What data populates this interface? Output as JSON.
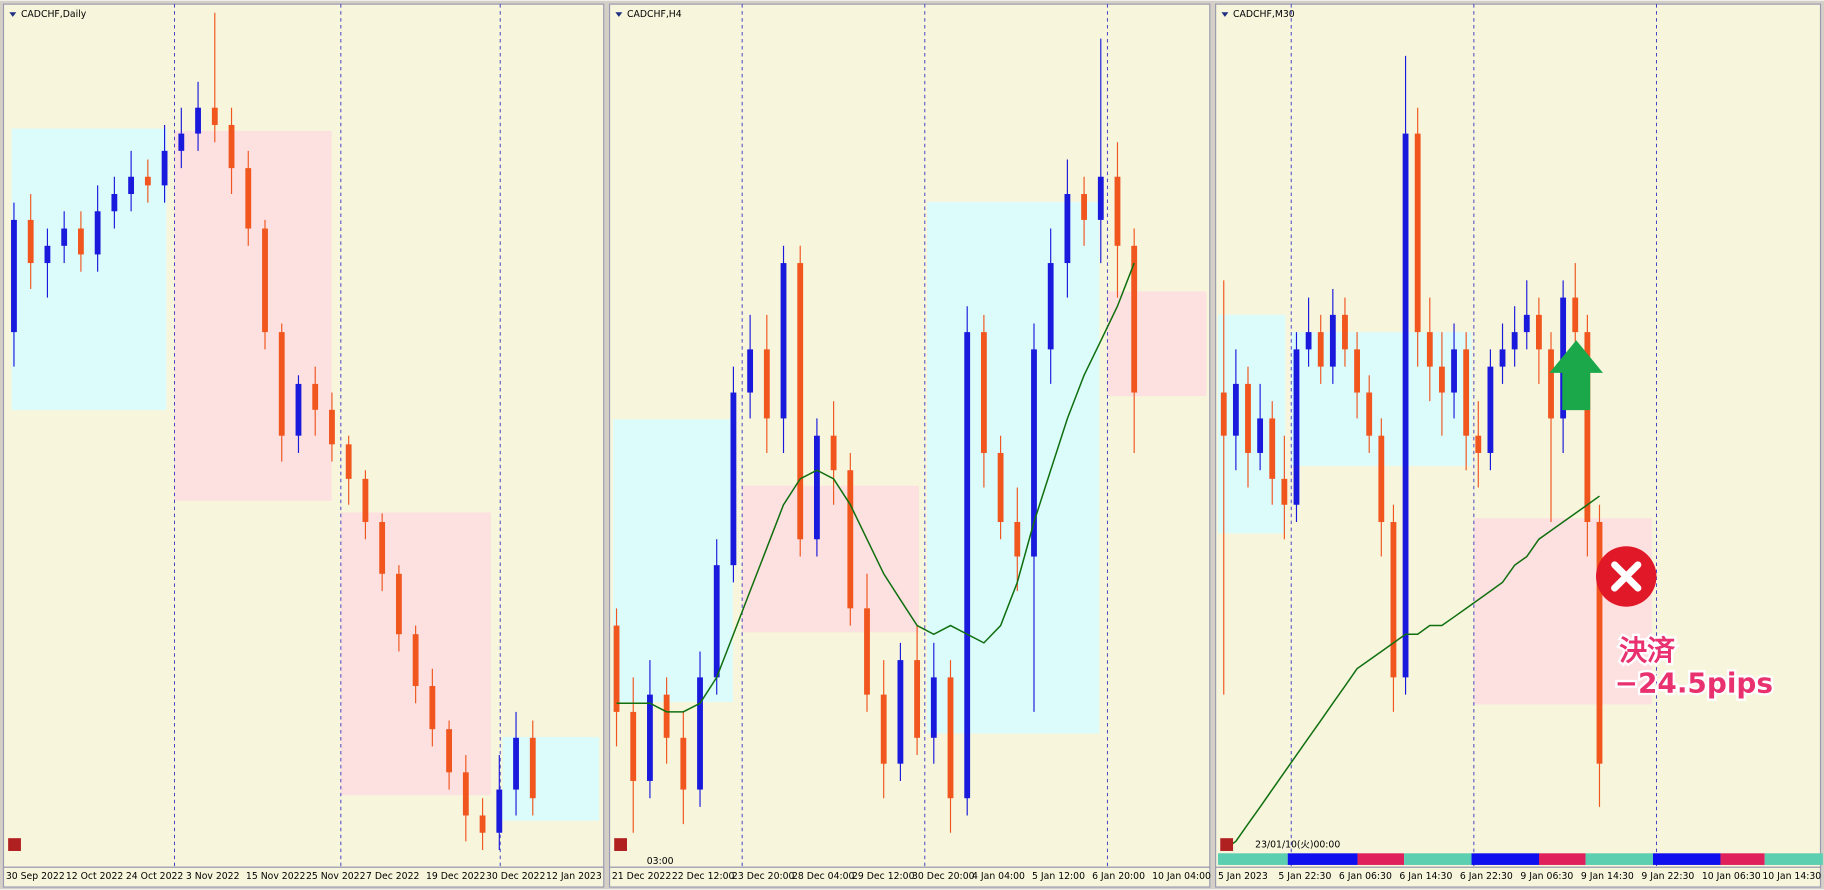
{
  "chart_data": [
    {
      "type": "candlestick",
      "title": "CADCHF,Daily",
      "ylim": [
        0,
        100
      ],
      "up_color": "#1a1adc",
      "down_color": "#f0561e",
      "open": [
        62,
        75,
        70,
        72,
        74,
        71,
        76,
        78,
        80,
        79,
        83,
        85,
        88,
        86,
        81,
        74,
        62,
        50,
        56,
        53,
        49,
        45,
        40,
        34,
        27,
        21,
        16,
        11,
        6,
        4,
        9,
        15
      ],
      "high": [
        77,
        78,
        74,
        76,
        76,
        79,
        80,
        83,
        82,
        86,
        88,
        91,
        99,
        88,
        83,
        75,
        63,
        57,
        58,
        55,
        50,
        46,
        41,
        35,
        28,
        23,
        17,
        13,
        8,
        13,
        18,
        17
      ],
      "low": [
        58,
        67,
        66,
        70,
        69,
        69,
        74,
        76,
        77,
        77,
        81,
        83,
        84,
        78,
        72,
        60,
        47,
        48,
        50,
        47,
        42,
        38,
        32,
        25,
        19,
        14,
        9,
        3,
        2,
        2,
        6,
        6
      ],
      "close": [
        75,
        70,
        72,
        74,
        71,
        76,
        78,
        80,
        79,
        83,
        85,
        88,
        86,
        81,
        74,
        62,
        50,
        56,
        53,
        49,
        45,
        40,
        34,
        27,
        21,
        16,
        11,
        6,
        4,
        9,
        15,
        8
      ],
      "xtick_labels": [
        "30 Sep 2022",
        "12 Oct 2022",
        "24 Oct 2022",
        "3 Nov 2022",
        "15 Nov 2022",
        "25 Nov 2022",
        "7 Dec 2022",
        "19 Dec 2022",
        "30 Dec 2022",
        "12 Jan 2023"
      ]
    },
    {
      "type": "candlestick",
      "title": "CADCHF,H4",
      "ylim": [
        0,
        100
      ],
      "up_color": "#1a1adc",
      "down_color": "#f0561e",
      "ma_color": "#107010",
      "cursor_label": "03:00",
      "open": [
        28,
        18,
        10,
        20,
        15,
        9,
        22,
        35,
        55,
        60,
        52,
        70,
        38,
        50,
        46,
        30,
        20,
        12,
        24,
        15,
        22,
        8,
        62,
        48,
        40,
        36,
        60,
        70,
        78,
        75,
        80,
        72
      ],
      "high": [
        30,
        22,
        24,
        22,
        18,
        25,
        38,
        58,
        64,
        64,
        72,
        72,
        52,
        54,
        48,
        34,
        24,
        26,
        28,
        26,
        24,
        65,
        64,
        50,
        44,
        63,
        74,
        82,
        80,
        96,
        84,
        74
      ],
      "low": [
        14,
        4,
        8,
        12,
        5,
        7,
        20,
        33,
        52,
        48,
        48,
        36,
        36,
        42,
        28,
        18,
        8,
        10,
        13,
        12,
        4,
        6,
        44,
        38,
        32,
        18,
        56,
        66,
        72,
        70,
        66,
        48
      ],
      "close": [
        18,
        10,
        20,
        15,
        9,
        22,
        35,
        55,
        60,
        52,
        70,
        38,
        50,
        46,
        30,
        20,
        12,
        24,
        15,
        22,
        8,
        62,
        48,
        40,
        36,
        60,
        70,
        78,
        75,
        80,
        72,
        55
      ],
      "ma": [
        19,
        19,
        19,
        18,
        18,
        19,
        22,
        27,
        32,
        37,
        42,
        45,
        46,
        45,
        42,
        38,
        34,
        31,
        28,
        27,
        28,
        27,
        26,
        28,
        33,
        40,
        46,
        52,
        57,
        61,
        65,
        70
      ],
      "xtick_labels": [
        "21 Dec 2022",
        "22 Dec 12:00",
        "23 Dec 20:00",
        "28 Dec 04:00",
        "29 Dec 12:00",
        "30 Dec 20:00",
        "4 Jan 04:00",
        "5 Jan 12:00",
        "6 Jan 20:00",
        "10 Jan 04:00"
      ]
    },
    {
      "type": "candlestick",
      "title": "CADCHF,M30",
      "ylim": [
        0,
        100
      ],
      "up_color": "#1a1adc",
      "down_color": "#f0561e",
      "ma_color": "#107010",
      "cursor_label": "23/01/10(火)00:00",
      "annotations": [
        "決済",
        "−24.5pips"
      ],
      "open": [
        55,
        50,
        56,
        48,
        52,
        45,
        42,
        60,
        62,
        58,
        64,
        60,
        55,
        50,
        40,
        22,
        85,
        62,
        58,
        55,
        60,
        50,
        48,
        58,
        60,
        62,
        64,
        60,
        52,
        66,
        62,
        40
      ],
      "high": [
        68,
        60,
        58,
        56,
        54,
        50,
        62,
        66,
        64,
        67,
        66,
        62,
        57,
        52,
        42,
        94,
        88,
        66,
        62,
        63,
        62,
        54,
        60,
        63,
        65,
        68,
        66,
        62,
        68,
        70,
        64,
        42
      ],
      "low": [
        20,
        46,
        44,
        46,
        42,
        38,
        40,
        58,
        56,
        56,
        58,
        52,
        48,
        36,
        18,
        20,
        58,
        54,
        50,
        52,
        46,
        44,
        46,
        56,
        58,
        60,
        56,
        40,
        48,
        60,
        36,
        7
      ],
      "close": [
        50,
        56,
        48,
        52,
        45,
        42,
        60,
        62,
        58,
        64,
        60,
        55,
        50,
        40,
        22,
        85,
        62,
        58,
        55,
        60,
        50,
        48,
        58,
        60,
        62,
        64,
        60,
        52,
        66,
        62,
        40,
        12
      ],
      "ma": [
        2,
        3,
        5,
        7,
        9,
        11,
        13,
        15,
        17,
        19,
        21,
        23,
        24,
        25,
        26,
        27,
        27,
        28,
        28,
        29,
        30,
        31,
        32,
        33,
        35,
        36,
        38,
        39,
        40,
        41,
        42,
        43
      ],
      "xtick_labels": [
        "5 Jan 2023",
        "5 Jan 22:30",
        "6 Jan 06:30",
        "6 Jan 14:30",
        "6 Jan 22:30",
        "9 Jan 06:30",
        "9 Jan 14:30",
        "9 Jan 22:30",
        "10 Jan 06:30",
        "10 Jan 14:30"
      ]
    }
  ]
}
